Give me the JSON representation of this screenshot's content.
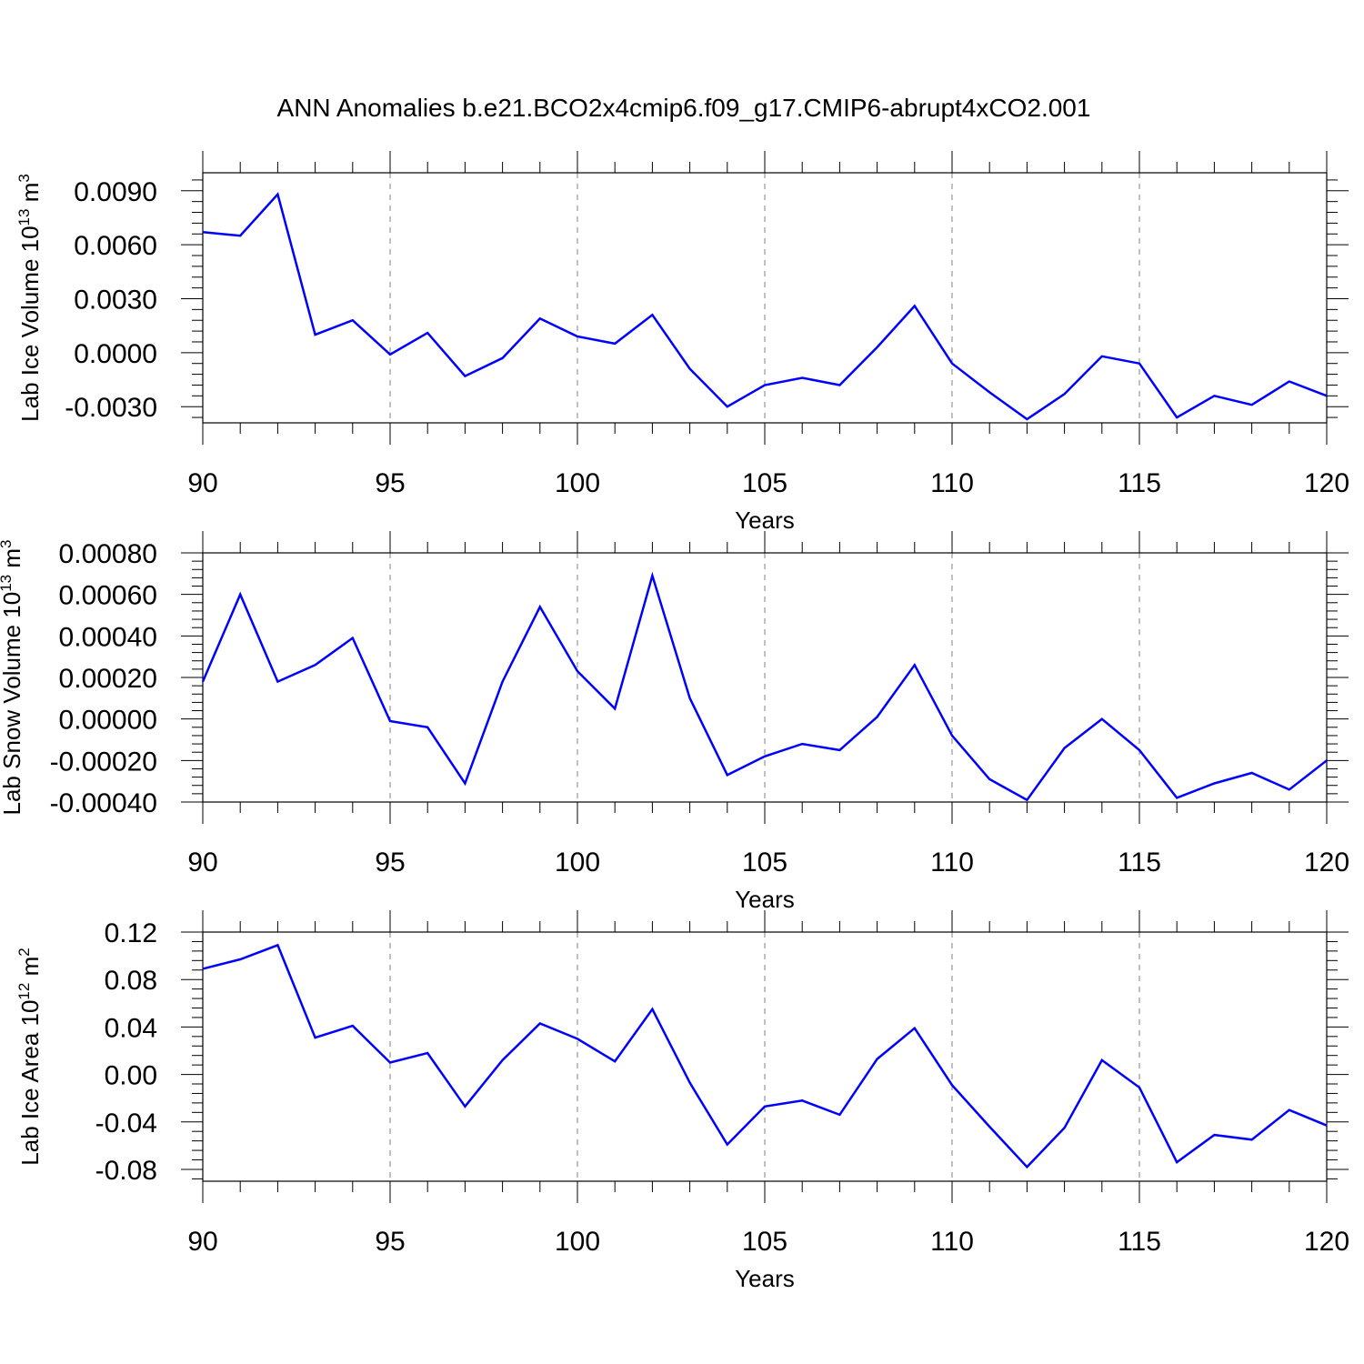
{
  "figure_title": "ANN Anomalies b.e21.BCO2x4cmip6.f09_g17.CMIP6-abrupt4xCO2.001",
  "colors": {
    "line": "#0000ff",
    "axis": "#000000",
    "grid": "#808080"
  },
  "chart_data": [
    {
      "type": "line",
      "title": "ANN Anomalies b.e21.BCO2x4cmip6.f09_g17.CMIP6-abrupt4xCO2.001",
      "ylabel_main": "Lab Ice Volume 10",
      "ylabel_exp": "13",
      "ylabel_unit": " m",
      "ylabel_unit_exp": "3",
      "xlabel": "Years",
      "xlim": [
        90,
        120
      ],
      "ylim": [
        -0.0039,
        0.01
      ],
      "xticks": [
        "90",
        "95",
        "100",
        "105",
        "110",
        "115",
        "120"
      ],
      "xtick_values": [
        90,
        95,
        100,
        105,
        110,
        115,
        120
      ],
      "yticks": [
        "0.0090",
        "0.0060",
        "0.0030",
        "0.0000",
        "-0.0030"
      ],
      "ytick_values": [
        0.009,
        0.006,
        0.003,
        0.0,
        -0.003
      ],
      "grid": "vertical dashed at major x ticks",
      "series": [
        {
          "name": "Lab Ice Volume",
          "x": [
            90,
            91,
            92,
            93,
            94,
            95,
            96,
            97,
            98,
            99,
            100,
            101,
            102,
            103,
            104,
            105,
            106,
            107,
            108,
            109,
            110,
            111,
            112,
            113,
            114,
            115,
            116,
            117,
            118,
            119,
            120
          ],
          "values": [
            0.0067,
            0.0065,
            0.0088,
            0.001,
            0.0018,
            -0.0001,
            0.0011,
            -0.0013,
            -0.0003,
            0.0019,
            0.0009,
            0.0005,
            0.0021,
            -0.0009,
            -0.003,
            -0.0018,
            -0.0014,
            -0.0018,
            0.0003,
            0.0026,
            -0.0006,
            -0.0022,
            -0.0037,
            -0.0023,
            -0.0002,
            -0.0006,
            -0.0036,
            -0.0024,
            -0.0029,
            -0.0016,
            -0.0024
          ]
        }
      ]
    },
    {
      "type": "line",
      "ylabel_main": "Lab Snow Volume 10",
      "ylabel_exp": "13",
      "ylabel_unit": " m",
      "ylabel_unit_exp": "3",
      "xlabel": "Years",
      "xlim": [
        90,
        120
      ],
      "ylim": [
        -0.0004,
        0.0008
      ],
      "xticks": [
        "90",
        "95",
        "100",
        "105",
        "110",
        "115",
        "120"
      ],
      "xtick_values": [
        90,
        95,
        100,
        105,
        110,
        115,
        120
      ],
      "yticks": [
        "0.00080",
        "0.00060",
        "0.00040",
        "0.00020",
        "0.00000",
        "-0.00020",
        "-0.00040"
      ],
      "ytick_values": [
        0.0008,
        0.0006,
        0.0004,
        0.0002,
        0.0,
        -0.0002,
        -0.0004
      ],
      "grid": "vertical dashed at major x ticks",
      "series": [
        {
          "name": "Lab Snow Volume",
          "x": [
            90,
            91,
            92,
            93,
            94,
            95,
            96,
            97,
            98,
            99,
            100,
            101,
            102,
            103,
            104,
            105,
            106,
            107,
            108,
            109,
            110,
            111,
            112,
            113,
            114,
            115,
            116,
            117,
            118,
            119,
            120
          ],
          "values": [
            0.00018,
            0.0006,
            0.00018,
            0.00026,
            0.00039,
            -1e-05,
            -4e-05,
            -0.00031,
            0.00018,
            0.00054,
            0.00023,
            5e-05,
            0.00069,
            0.0001,
            -0.00027,
            -0.00018,
            -0.00012,
            -0.00015,
            1e-05,
            0.00026,
            -8e-05,
            -0.00029,
            -0.00039,
            -0.00014,
            0.0,
            -0.00015,
            -0.00038,
            -0.00031,
            -0.00026,
            -0.00034,
            -0.0002
          ]
        }
      ]
    },
    {
      "type": "line",
      "ylabel_main": "Lab Ice Area 10",
      "ylabel_exp": "12",
      "ylabel_unit": " m",
      "ylabel_unit_exp": "2",
      "xlabel": "Years",
      "xlim": [
        90,
        120
      ],
      "ylim": [
        -0.09,
        0.12
      ],
      "xticks": [
        "90",
        "95",
        "100",
        "105",
        "110",
        "115",
        "120"
      ],
      "xtick_values": [
        90,
        95,
        100,
        105,
        110,
        115,
        120
      ],
      "yticks": [
        "0.12",
        "0.08",
        "0.04",
        "0.00",
        "-0.04",
        "-0.08"
      ],
      "ytick_values": [
        0.12,
        0.08,
        0.04,
        0.0,
        -0.04,
        -0.08
      ],
      "grid": "vertical dashed at major x ticks",
      "series": [
        {
          "name": "Lab Ice Area",
          "x": [
            90,
            91,
            92,
            93,
            94,
            95,
            96,
            97,
            98,
            99,
            100,
            101,
            102,
            103,
            104,
            105,
            106,
            107,
            108,
            109,
            110,
            111,
            112,
            113,
            114,
            115,
            116,
            117,
            118,
            119,
            120
          ],
          "values": [
            0.089,
            0.097,
            0.109,
            0.031,
            0.041,
            0.01,
            0.018,
            -0.027,
            0.012,
            0.043,
            0.03,
            0.011,
            0.055,
            -0.007,
            -0.059,
            -0.027,
            -0.022,
            -0.034,
            0.013,
            0.039,
            -0.009,
            -0.044,
            -0.078,
            -0.045,
            0.012,
            -0.011,
            -0.074,
            -0.051,
            -0.055,
            -0.03,
            -0.043
          ]
        }
      ]
    }
  ]
}
